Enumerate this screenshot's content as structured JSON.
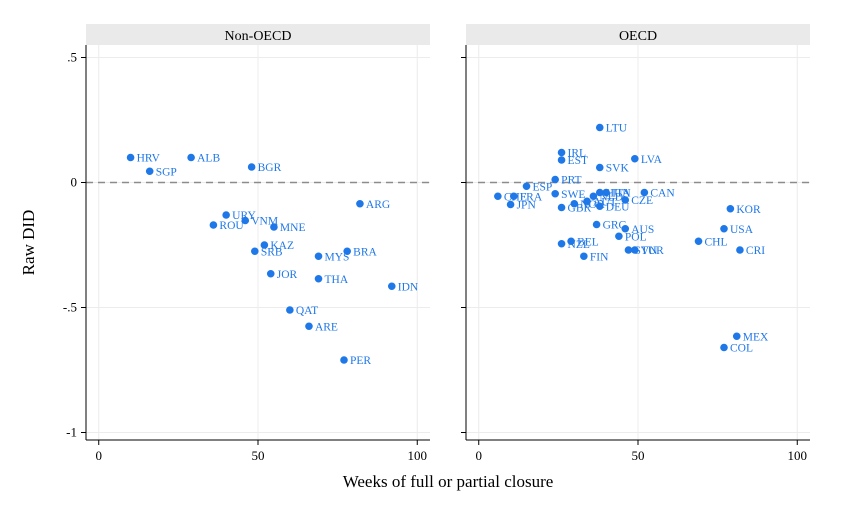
{
  "chart_data": {
    "type": "scatter",
    "xlabel": "Weeks of full or partial closure",
    "ylabel": "Raw DID",
    "xlim": [
      -4,
      104
    ],
    "ylim": [
      -1.03,
      0.55
    ],
    "xticks": [
      0,
      50,
      100
    ],
    "xtick_labels": [
      "0",
      "50",
      "100"
    ],
    "yticks": [
      0.5,
      0,
      -0.5,
      -1
    ],
    "ytick_labels": [
      ".5",
      "0",
      "-.5",
      "-1"
    ],
    "reference_line_y": 0,
    "grid": true,
    "marker_color": "#1f78e8",
    "panels": [
      {
        "title": "Non-OECD",
        "points": [
          {
            "label": "HRV",
            "x": 10,
            "y": 0.1
          },
          {
            "label": "ALB",
            "x": 29,
            "y": 0.1
          },
          {
            "label": "SGP",
            "x": 16,
            "y": 0.045
          },
          {
            "label": "BGR",
            "x": 48,
            "y": 0.062
          },
          {
            "label": "URY",
            "x": 40,
            "y": -0.13
          },
          {
            "label": "VNM",
            "x": 46,
            "y": -0.152
          },
          {
            "label": "ROU",
            "x": 36,
            "y": -0.17
          },
          {
            "label": "MNE",
            "x": 55,
            "y": -0.178
          },
          {
            "label": "KAZ",
            "x": 52,
            "y": -0.25
          },
          {
            "label": "SRB",
            "x": 49,
            "y": -0.275
          },
          {
            "label": "ARG",
            "x": 82,
            "y": -0.085
          },
          {
            "label": "BRA",
            "x": 78,
            "y": -0.275
          },
          {
            "label": "MYS",
            "x": 69,
            "y": -0.295
          },
          {
            "label": "JOR",
            "x": 54,
            "y": -0.365
          },
          {
            "label": "THA",
            "x": 69,
            "y": -0.385
          },
          {
            "label": "IDN",
            "x": 92,
            "y": -0.415
          },
          {
            "label": "QAT",
            "x": 60,
            "y": -0.51
          },
          {
            "label": "ARE",
            "x": 66,
            "y": -0.575
          },
          {
            "label": "PER",
            "x": 77,
            "y": -0.71
          }
        ]
      },
      {
        "title": "OECD",
        "points": [
          {
            "label": "LTU",
            "x": 38,
            "y": 0.22
          },
          {
            "label": "IRL",
            "x": 26,
            "y": 0.12
          },
          {
            "label": "EST",
            "x": 26,
            "y": 0.09
          },
          {
            "label": "LVA",
            "x": 49,
            "y": 0.095
          },
          {
            "label": "SVK",
            "x": 38,
            "y": 0.06
          },
          {
            "label": "PRT",
            "x": 24,
            "y": 0.012
          },
          {
            "label": "ESP",
            "x": 15,
            "y": -0.015
          },
          {
            "label": "CHE",
            "x": 6,
            "y": -0.055
          },
          {
            "label": "FRA",
            "x": 11,
            "y": -0.055
          },
          {
            "label": "SWE",
            "x": 24,
            "y": -0.045
          },
          {
            "label": "JPN",
            "x": 10,
            "y": -0.088
          },
          {
            "label": "HUN",
            "x": 38,
            "y": -0.04
          },
          {
            "label": "ITA",
            "x": 40,
            "y": -0.04
          },
          {
            "label": "NLD",
            "x": 36,
            "y": -0.055
          },
          {
            "label": "CAN",
            "x": 52,
            "y": -0.04
          },
          {
            "label": "CZE",
            "x": 46,
            "y": -0.07
          },
          {
            "label": "NOR",
            "x": 30,
            "y": -0.085
          },
          {
            "label": "AUT",
            "x": 34,
            "y": -0.075
          },
          {
            "label": "GBR",
            "x": 26,
            "y": -0.1
          },
          {
            "label": "DEU",
            "x": 38,
            "y": -0.095
          },
          {
            "label": "KOR",
            "x": 79,
            "y": -0.105
          },
          {
            "label": "GRC",
            "x": 37,
            "y": -0.168
          },
          {
            "label": "AUS",
            "x": 46,
            "y": -0.185
          },
          {
            "label": "USA",
            "x": 77,
            "y": -0.185
          },
          {
            "label": "POL",
            "x": 44,
            "y": -0.215
          },
          {
            "label": "BEL",
            "x": 29,
            "y": -0.235
          },
          {
            "label": "NZL",
            "x": 26,
            "y": -0.245
          },
          {
            "label": "CHL",
            "x": 69,
            "y": -0.235
          },
          {
            "label": "SVN",
            "x": 47,
            "y": -0.27
          },
          {
            "label": "TUR",
            "x": 49,
            "y": -0.27
          },
          {
            "label": "CRI",
            "x": 82,
            "y": -0.27
          },
          {
            "label": "FIN",
            "x": 33,
            "y": -0.295
          },
          {
            "label": "MEX",
            "x": 81,
            "y": -0.615
          },
          {
            "label": "COL",
            "x": 77,
            "y": -0.66
          }
        ]
      }
    ]
  }
}
